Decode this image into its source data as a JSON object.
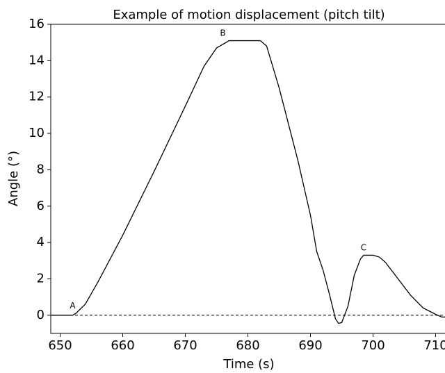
{
  "chart_data": {
    "type": "line",
    "title": "Example of motion displacement (pitch tilt)",
    "x_label": "Time (s)",
    "y_label": "Angle (°)",
    "x": [
      648.5,
      652,
      652.5,
      654,
      656,
      660,
      665,
      670,
      673,
      675,
      677,
      682,
      683,
      685,
      688,
      690,
      691,
      692,
      693,
      694,
      694.5,
      695,
      696,
      697,
      698,
      698.5,
      700,
      701,
      702,
      704,
      706,
      708,
      710,
      711,
      711.5
    ],
    "series": [
      {
        "name": "pitch",
        "color": "#000000",
        "values": [
          0,
          0,
          0.1,
          0.6,
          1.8,
          4.4,
          7.9,
          11.5,
          13.7,
          14.7,
          15.1,
          15.1,
          14.8,
          12.5,
          8.5,
          5.5,
          3.5,
          2.5,
          1.2,
          -0.2,
          -0.45,
          -0.4,
          0.5,
          2.2,
          3.1,
          3.3,
          3.3,
          3.2,
          2.9,
          2.0,
          1.1,
          0.4,
          0.05,
          -0.1,
          -0.1
        ]
      }
    ],
    "annotations": [
      {
        "text": "A",
        "x": 652,
        "y": 0.5
      },
      {
        "text": "B",
        "x": 676,
        "y": 15.5
      },
      {
        "text": "C",
        "x": 698.5,
        "y": 3.7
      }
    ],
    "reference_line": 0,
    "xlim": [
      648.5,
      711.5
    ],
    "ylim": [
      -1,
      16
    ],
    "xticks": [
      650,
      660,
      670,
      680,
      690,
      700,
      710
    ],
    "yticks": [
      0,
      2,
      4,
      6,
      8,
      10,
      12,
      14,
      16
    ]
  }
}
